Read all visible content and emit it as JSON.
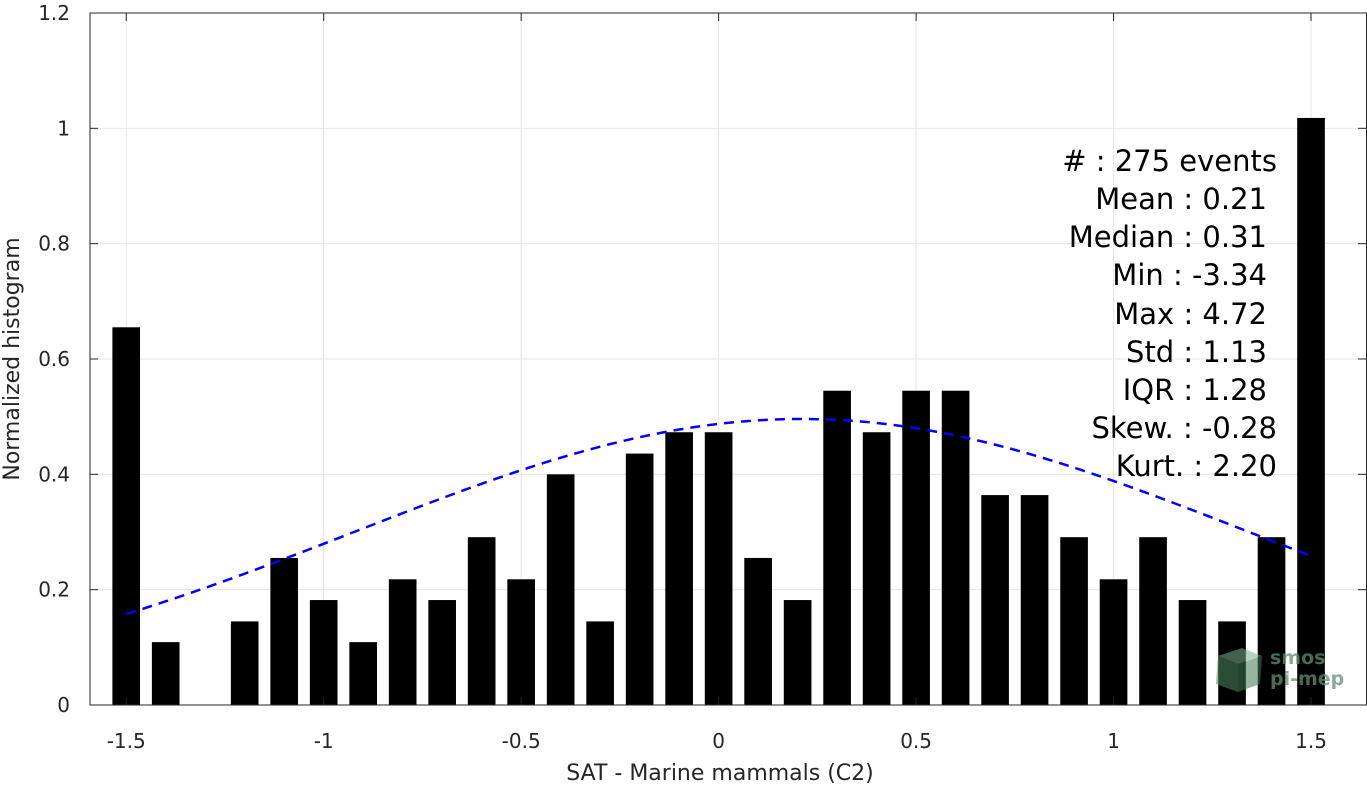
{
  "chart_data": {
    "type": "bar",
    "xlabel": "SAT - Marine mammals (C2)",
    "ylabel": "Normalized histogram",
    "xlim": [
      -1.5917,
      1.6417
    ],
    "ylim": [
      0,
      1.2
    ],
    "xticks": [
      -1.5,
      -1,
      -0.5,
      0,
      0.5,
      1,
      1.5
    ],
    "xtick_labels": [
      "-1.5",
      "-1",
      "-0.5",
      "0",
      "0.5",
      "1",
      "1.5"
    ],
    "yticks": [
      0,
      0.2,
      0.4,
      0.6,
      0.8,
      1,
      1.2
    ],
    "ytick_labels": [
      "0",
      "0.2",
      "0.4",
      "0.6",
      "0.8",
      "1",
      "1.2"
    ],
    "grid": true,
    "bar_width": 0.07,
    "bar_color": "#000000",
    "x": [
      -1.5,
      -1.4,
      -1.3,
      -1.2,
      -1.1,
      -1.0,
      -0.9,
      -0.8,
      -0.7,
      -0.6,
      -0.5,
      -0.4,
      -0.3,
      -0.2,
      -0.1,
      0.0,
      0.1,
      0.2,
      0.3,
      0.4,
      0.5,
      0.6,
      0.7,
      0.8,
      0.9,
      1.0,
      1.1,
      1.2,
      1.3,
      1.4,
      1.5
    ],
    "values": [
      0.655,
      0.109,
      0.0,
      0.145,
      0.255,
      0.182,
      0.109,
      0.218,
      0.182,
      0.291,
      0.218,
      0.4,
      0.145,
      0.436,
      0.473,
      0.473,
      0.255,
      0.182,
      0.545,
      0.473,
      0.545,
      0.545,
      0.364,
      0.364,
      0.291,
      0.218,
      0.291,
      0.182,
      0.145,
      0.291,
      1.018
    ],
    "fit_curve": {
      "style": "dashed",
      "color": "#0000ff",
      "mean": 0.21,
      "std": 1.13,
      "peak": 0.496,
      "x_range": [
        -1.5,
        1.5
      ]
    },
    "stats": [
      "#  : 275 events",
      "Mean : 0.21",
      "Median : 0.31",
      "Min : -3.34",
      "Max : 4.72",
      "Std : 1.13",
      "IQR : 1.28",
      "Skew. : -0.28",
      "Kurt. : 2.20"
    ],
    "watermark": [
      "smos",
      "pi-mep"
    ]
  }
}
